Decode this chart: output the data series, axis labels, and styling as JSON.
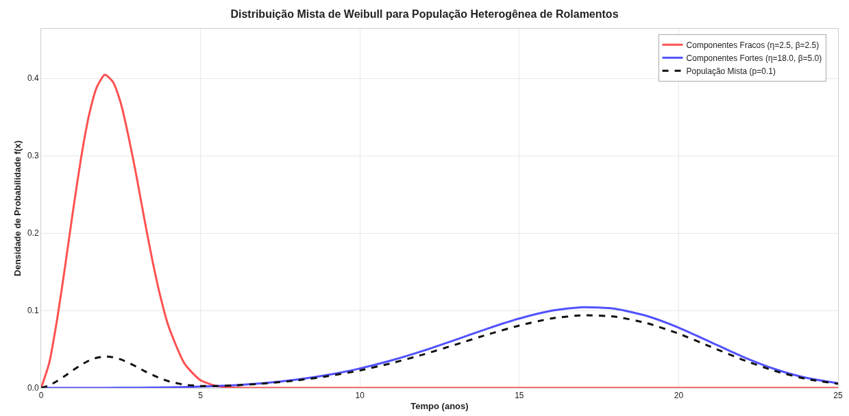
{
  "chart_data": {
    "type": "line",
    "title": "Distribuição Mista de Weibull para População Heterogênea de Rolamentos",
    "xlabel": "Tempo (anos)",
    "ylabel": "Densidade de Probabilidade f(x)",
    "series": [
      {
        "name": "Componentes Fracos (η=2.5, β=2.5)",
        "color": "#ff3333",
        "line_style": "solid",
        "x": [
          0,
          0.25,
          0.5,
          0.75,
          1,
          1.25,
          1.5,
          1.75,
          2,
          2.25,
          2.5,
          2.75,
          3,
          3.25,
          3.5,
          3.75,
          4,
          4.5,
          5,
          5.5,
          6,
          7,
          25
        ],
        "values": [
          0,
          0.0315,
          0.0878,
          0.1564,
          0.2286,
          0.2962,
          0.3518,
          0.3888,
          0.4046,
          0.3955,
          0.3679,
          0.3232,
          0.2717,
          0.2158,
          0.163,
          0.1168,
          0.0794,
          0.0313,
          0.0099,
          0.0025,
          0.0005,
          0,
          0
        ]
      },
      {
        "name": "Componentes Fortes (η=18.0, β=5.0)",
        "color": "#3333ff",
        "line_style": "solid",
        "x": [
          0,
          2,
          3,
          4,
          4.5,
          5,
          5.5,
          6,
          7,
          8,
          9,
          10,
          11,
          12,
          13,
          14,
          15,
          16,
          17,
          18,
          19,
          20,
          21,
          22,
          23,
          24,
          25
        ],
        "values": [
          0,
          0,
          0.0003,
          0.0007,
          0.0011,
          0.0017,
          0.0024,
          0.0034,
          0.0063,
          0.0107,
          0.0168,
          0.0251,
          0.0356,
          0.0481,
          0.0621,
          0.0765,
          0.0896,
          0.0996,
          0.1043,
          0.1022,
          0.093,
          0.0779,
          0.0592,
          0.0405,
          0.0246,
          0.013,
          0.0059
        ]
      },
      {
        "name": "População Mista (p=0.1)",
        "color": "#111111",
        "line_style": "dashed",
        "x": [
          0,
          0.25,
          0.5,
          0.75,
          1,
          1.25,
          1.5,
          1.75,
          2,
          2.25,
          2.5,
          2.75,
          3,
          3.25,
          3.5,
          3.75,
          4,
          4.5,
          5,
          5.5,
          6,
          7,
          8,
          9,
          10,
          11,
          12,
          13,
          14,
          15,
          16,
          17,
          18,
          19,
          20,
          21,
          22,
          23,
          24,
          25
        ],
        "values": [
          0,
          0.0032,
          0.0088,
          0.0156,
          0.0229,
          0.0296,
          0.0352,
          0.0389,
          0.0405,
          0.0396,
          0.0368,
          0.0323,
          0.0272,
          0.0216,
          0.0167,
          0.0122,
          0.0086,
          0.0041,
          0.0025,
          0.0024,
          0.0031,
          0.0057,
          0.0096,
          0.0152,
          0.0226,
          0.032,
          0.0433,
          0.0559,
          0.0689,
          0.0806,
          0.0896,
          0.0939,
          0.092,
          0.0837,
          0.0701,
          0.0533,
          0.0365,
          0.0221,
          0.0117,
          0.0053
        ]
      }
    ],
    "xlim": [
      0,
      25
    ],
    "xticks": [
      0,
      5,
      10,
      15,
      20,
      25
    ],
    "ylim": [
      0,
      0.464
    ],
    "yticks": [
      {
        "value": 0,
        "label": "0.0"
      },
      0.1,
      0.2,
      0.3,
      0.4
    ],
    "grid": true,
    "legend": "top right",
    "marker": "none"
  }
}
